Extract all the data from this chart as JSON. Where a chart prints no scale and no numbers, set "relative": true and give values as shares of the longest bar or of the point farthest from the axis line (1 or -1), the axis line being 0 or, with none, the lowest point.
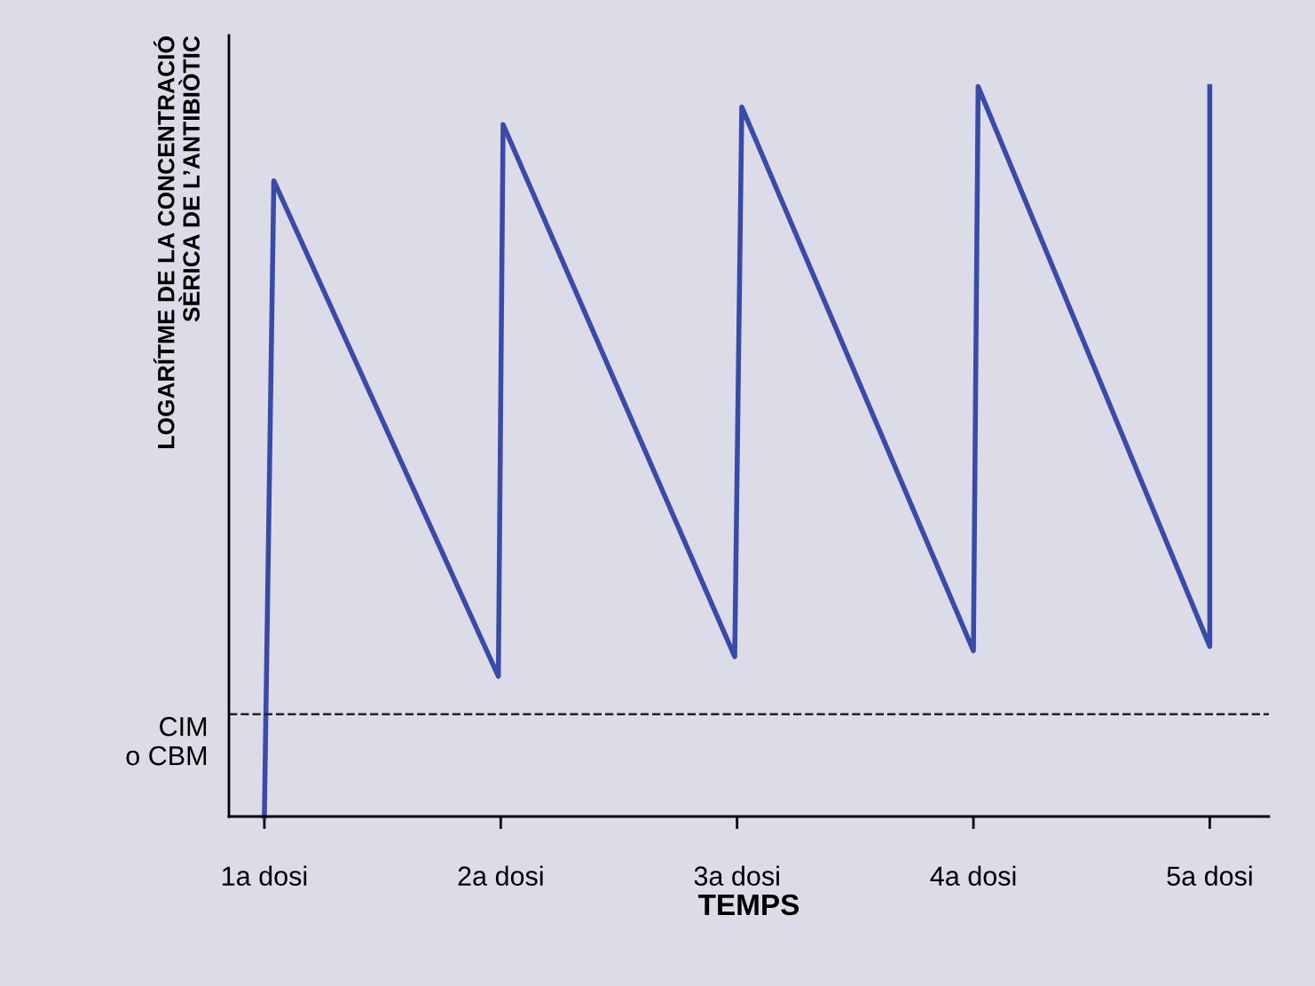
{
  "chart_data": {
    "type": "line",
    "relative": true,
    "xlabel": "TEMPS",
    "ylabel": "LOGARÍTME DE LA CONCENTRACIÓ\nSÈRICA DE L’ANTIBIÒTIC",
    "xlim": [
      0.85,
      5.25
    ],
    "xticks": [
      {
        "value": 1,
        "label": "1a dosi"
      },
      {
        "value": 2,
        "label": "2a dosi"
      },
      {
        "value": 3,
        "label": "3a dosi"
      },
      {
        "value": 4,
        "label": "4a dosi"
      },
      {
        "value": 5,
        "label": "5a dosi"
      }
    ],
    "series": [
      {
        "color": "#3a4aa8",
        "x": [
          1,
          1.04,
          1.99,
          2.01,
          2.99,
          3.02,
          4.0,
          4.02,
          5.0,
          5.0
        ],
        "values": [
          0,
          0.871,
          0.192,
          0.948,
          0.219,
          0.972,
          0.227,
          1.0,
          0.233,
          1.0
        ]
      }
    ],
    "ref_lines": [
      {
        "axis": "y",
        "value": 0.14,
        "label": "CIM\no CBM",
        "color": "#222222",
        "line_style": "dashed"
      }
    ],
    "grid": false,
    "legend": false,
    "line_style": "solid",
    "marker": "none"
  }
}
